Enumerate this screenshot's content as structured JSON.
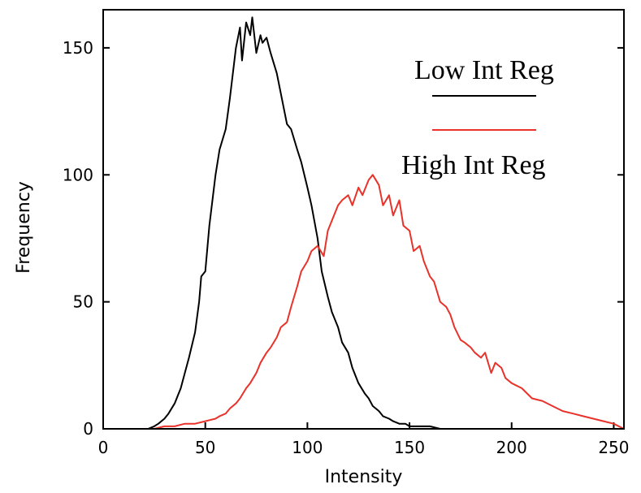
{
  "chart_data": {
    "type": "line",
    "title": "",
    "xlabel": "Intensity",
    "ylabel": "Frequency",
    "xlim": [
      0,
      255
    ],
    "ylim": [
      0,
      165
    ],
    "x_ticks": [
      0,
      50,
      100,
      150,
      200,
      250
    ],
    "x_tick_labels": [
      "0",
      "50",
      "100",
      "150",
      "200",
      "250"
    ],
    "y_ticks": [
      0,
      50,
      100,
      150
    ],
    "y_tick_labels": [
      "0",
      "50",
      "100",
      "150"
    ],
    "grid": false,
    "legend": {
      "position": "top-right"
    },
    "series": [
      {
        "name": "Low Int Reg",
        "color": "#000000",
        "x": [
          0,
          5,
          10,
          15,
          20,
          22,
          25,
          27,
          30,
          32,
          35,
          38,
          40,
          42,
          45,
          47,
          48,
          50,
          52,
          55,
          57,
          60,
          62,
          65,
          67,
          68,
          70,
          72,
          73,
          75,
          77,
          78,
          80,
          82,
          85,
          87,
          90,
          92,
          95,
          97,
          100,
          102,
          105,
          107,
          110,
          112,
          115,
          117,
          120,
          122,
          125,
          128,
          130,
          132,
          135,
          137,
          140,
          142,
          145,
          148,
          150,
          155,
          160,
          165,
          170,
          175,
          180,
          185,
          190,
          195
        ],
        "y": [
          0,
          0,
          0,
          0,
          0,
          0,
          1,
          2,
          4,
          6,
          10,
          16,
          22,
          28,
          38,
          50,
          60,
          62,
          80,
          100,
          110,
          118,
          130,
          150,
          158,
          145,
          160,
          155,
          162,
          148,
          155,
          152,
          154,
          148,
          140,
          132,
          120,
          118,
          110,
          105,
          95,
          88,
          75,
          62,
          52,
          46,
          40,
          34,
          30,
          24,
          18,
          14,
          12,
          9,
          7,
          5,
          4,
          3,
          2,
          2,
          1,
          1,
          1,
          0,
          0,
          0,
          0,
          0,
          0,
          0
        ]
      },
      {
        "name": "High Int Reg",
        "color": "#e8322a",
        "x": [
          0,
          10,
          20,
          25,
          30,
          35,
          40,
          45,
          50,
          55,
          57,
          60,
          62,
          65,
          67,
          70,
          72,
          75,
          77,
          80,
          82,
          85,
          87,
          90,
          92,
          95,
          97,
          100,
          102,
          105,
          108,
          110,
          112,
          115,
          117,
          120,
          122,
          125,
          127,
          130,
          132,
          135,
          137,
          140,
          142,
          145,
          147,
          150,
          152,
          155,
          157,
          160,
          162,
          165,
          168,
          170,
          172,
          175,
          177,
          180,
          182,
          185,
          187,
          190,
          192,
          195,
          197,
          200,
          205,
          210,
          215,
          220,
          225,
          230,
          235,
          240,
          245,
          250,
          255
        ],
        "y": [
          0,
          0,
          0,
          0,
          1,
          1,
          2,
          2,
          3,
          4,
          5,
          6,
          8,
          10,
          12,
          16,
          18,
          22,
          26,
          30,
          32,
          36,
          40,
          42,
          48,
          56,
          62,
          66,
          70,
          72,
          68,
          78,
          82,
          88,
          90,
          92,
          88,
          95,
          92,
          98,
          100,
          96,
          88,
          92,
          84,
          90,
          80,
          78,
          70,
          72,
          66,
          60,
          58,
          50,
          48,
          45,
          40,
          35,
          34,
          32,
          30,
          28,
          30,
          22,
          26,
          24,
          20,
          18,
          16,
          12,
          11,
          9,
          7,
          6,
          5,
          4,
          3,
          2,
          0
        ]
      }
    ]
  }
}
